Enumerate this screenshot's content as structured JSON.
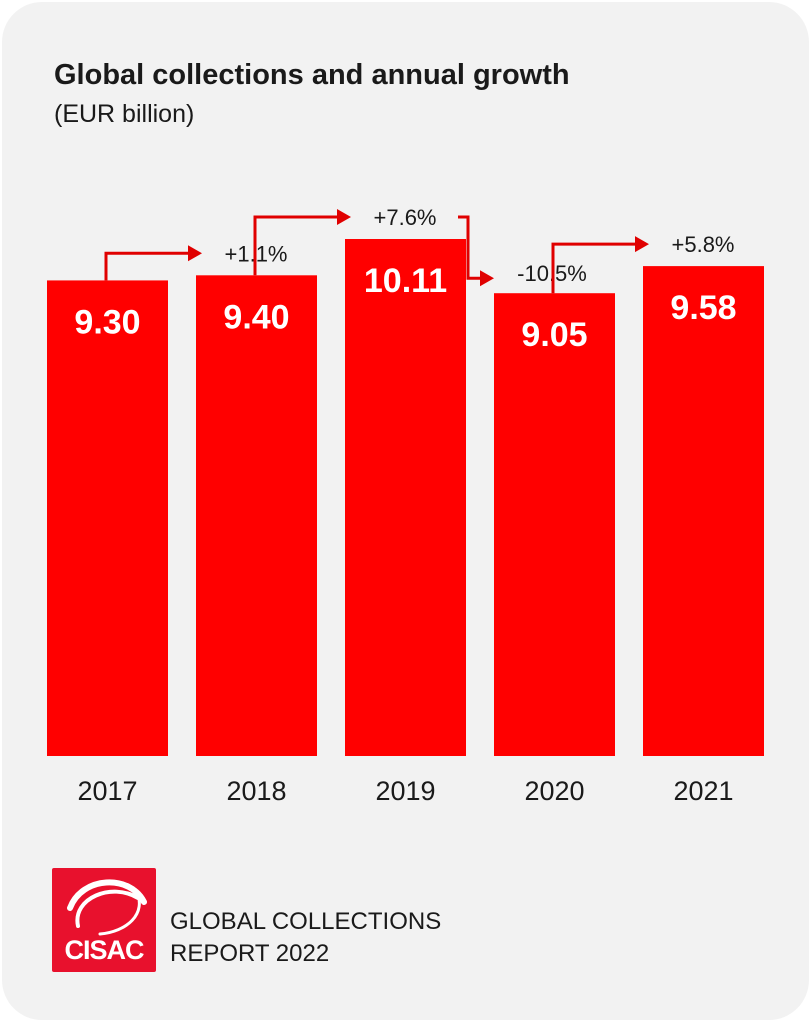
{
  "title": {
    "main": "Global collections and annual growth",
    "unit": "(EUR billion)"
  },
  "chart_data": {
    "type": "bar",
    "categories": [
      "2017",
      "2018",
      "2019",
      "2020",
      "2021"
    ],
    "values": [
      9.3,
      9.4,
      10.11,
      9.05,
      9.58
    ],
    "value_labels": [
      "9.30",
      "9.40",
      "10.11",
      "9.05",
      "9.58"
    ],
    "growth": [
      {
        "from": "2017",
        "to": "2018",
        "label": "+1.1%"
      },
      {
        "from": "2018",
        "to": "2019",
        "label": "+7.6%"
      },
      {
        "from": "2019",
        "to": "2020",
        "label": "-10.5%"
      },
      {
        "from": "2020",
        "to": "2021",
        "label": "+5.8%"
      }
    ],
    "ylim": [
      0,
      10.11
    ],
    "grid": false,
    "bar_color": "#ff0000",
    "arrow_color": "#e00000"
  },
  "logo": {
    "text": "CISAC",
    "color": "#e8112d"
  },
  "footer": {
    "line1": "GLOBAL COLLECTIONS",
    "line2": "REPORT 2022"
  }
}
